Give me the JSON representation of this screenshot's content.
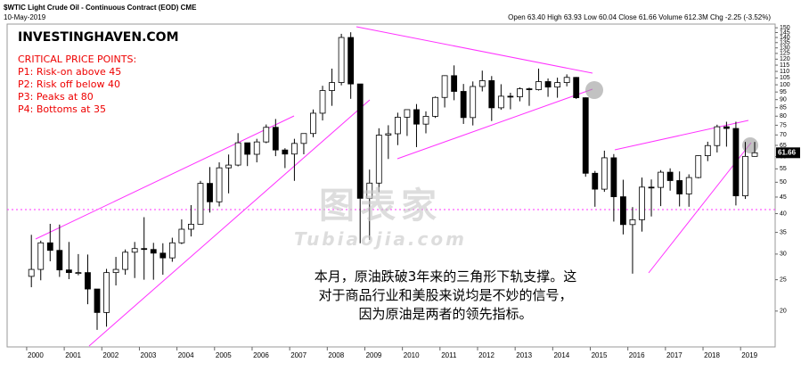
{
  "chart_data": {
    "type": "candlestick",
    "title": "$WTIC Light Crude Oil - Continuous Contract (EOD) CME",
    "subtitle": "10-May-2019",
    "stats": "Open 63.40 High 63.93 Low 60.04 Close 61.66 Volume 612.3M Chg -2.25 (-3.52%)",
    "last_price": 61.66,
    "last_price_label": "61.66",
    "brand": "INVESTINGHAVEN.COM",
    "notes_title": "CRITICAL PRICE POINTS:",
    "notes": [
      "P1: Risk-on above 45",
      "P2: Risk off below 40",
      "P3: Peaks at 80",
      "P4: Bottoms at 35"
    ],
    "caption": [
      "本月，原油跌破3年来的三角形下轨支撑。这",
      "对于商品行业和美股来说均是不妙的信号，",
      "因为原油是两者的领先指标。"
    ],
    "watermark": [
      "图表家",
      "Tubiaojia.com"
    ],
    "log_scale": true,
    "up_color": "#ffffff",
    "down_color": "#000000",
    "line_color": "#ff33ff",
    "xlim": [
      1999.48,
      2019.92
    ],
    "xticks": [
      2000,
      2001,
      2002,
      2003,
      2004,
      2005,
      2006,
      2007,
      2008,
      2009,
      2010,
      2011,
      2012,
      2013,
      2014,
      2015,
      2016,
      2017,
      2018,
      2019
    ],
    "ylim": [
      15.5,
      154
    ],
    "yticks": [
      20,
      25,
      30,
      35,
      40,
      45,
      50,
      55,
      60,
      65,
      70,
      75,
      80,
      85,
      90,
      95,
      100,
      105,
      110,
      115,
      120,
      125,
      130,
      135,
      140,
      145,
      150
    ],
    "x": [
      2000.125,
      2000.375,
      2000.625,
      2000.875,
      2001.125,
      2001.375,
      2001.625,
      2001.875,
      2002.125,
      2002.375,
      2002.625,
      2002.875,
      2003.125,
      2003.375,
      2003.625,
      2003.875,
      2004.125,
      2004.375,
      2004.625,
      2004.875,
      2005.125,
      2005.375,
      2005.625,
      2005.875,
      2006.125,
      2006.375,
      2006.625,
      2006.875,
      2007.125,
      2007.375,
      2007.625,
      2007.875,
      2008.125,
      2008.375,
      2008.625,
      2008.875,
      2009.125,
      2009.375,
      2009.625,
      2009.875,
      2010.125,
      2010.375,
      2010.625,
      2010.875,
      2011.125,
      2011.375,
      2011.625,
      2011.875,
      2012.125,
      2012.375,
      2012.625,
      2012.875,
      2013.125,
      2013.375,
      2013.625,
      2013.875,
      2014.125,
      2014.375,
      2014.625,
      2014.875,
      2015.125,
      2015.375,
      2015.625,
      2015.875,
      2016.125,
      2016.375,
      2016.625,
      2016.875,
      2017.125,
      2017.375,
      2017.625,
      2017.875,
      2018.125,
      2018.375,
      2018.625,
      2018.875,
      2019.125,
      2019.375
    ],
    "open": [
      25.6,
      26.9,
      32.5,
      30.8,
      26.8,
      26.3,
      26.3,
      23.4,
      19.8,
      26.3,
      26.9,
      30.4,
      31.2,
      31.0,
      30.2,
      29.2,
      32.5,
      35.8,
      37.1,
      49.6,
      43.5,
      55.4,
      56.5,
      66.2,
      61.0,
      66.6,
      73.9,
      62.9,
      61.1,
      65.9,
      70.7,
      81.7,
      96.0,
      101.6,
      140.0,
      100.6,
      44.6,
      49.7,
      69.9,
      70.6,
      79.4,
      83.8,
      75.6,
      79.9,
      91.4,
      106.7,
      95.4,
      79.2,
      98.8,
      103.0,
      84.9,
      92.2,
      91.8,
      97.2,
      96.6,
      102.3,
      98.4,
      101.6,
      105.4,
      91.2,
      53.3,
      47.6,
      59.5,
      45.1,
      37.0,
      38.3,
      48.3,
      48.2,
      53.7,
      50.6,
      46.0,
      51.7,
      60.4,
      64.9,
      74.2,
      73.3,
      45.4,
      60.1
    ],
    "high": [
      34.4,
      33.0,
      37.2,
      37.0,
      32.7,
      30.0,
      29.9,
      23.4,
      27.0,
      29.4,
      31.0,
      32.7,
      39.0,
      32.5,
      32.4,
      33.7,
      38.4,
      42.5,
      50.5,
      55.7,
      57.6,
      60.9,
      70.9,
      66.0,
      68.1,
      75.4,
      78.4,
      63.7,
      68.1,
      70.8,
      83.9,
      99.3,
      112.2,
      143.7,
      145.3,
      100.1,
      54.7,
      73.4,
      75.0,
      82.0,
      83.9,
      87.2,
      82.8,
      92.0,
      107.0,
      114.8,
      100.6,
      102.4,
      110.6,
      106.4,
      100.4,
      94.5,
      98.2,
      98.0,
      112.2,
      104.6,
      105.2,
      107.7,
      105.7,
      91.4,
      54.2,
      62.6,
      61.1,
      50.9,
      41.9,
      51.7,
      51.0,
      54.5,
      55.2,
      54.0,
      52.9,
      60.5,
      66.7,
      75.3,
      76.9,
      76.9,
      66.6,
      66.6
    ],
    "low": [
      23.7,
      24.9,
      28.5,
      25.5,
      25.1,
      25.8,
      21.0,
      17.5,
      17.9,
      24.0,
      25.9,
      25.3,
      25.0,
      25.0,
      25.9,
      28.4,
      32.2,
      34.0,
      38.1,
      40.3,
      42.1,
      46.2,
      56.0,
      56.1,
      57.6,
      66.0,
      60.2,
      55.3,
      50.5,
      61.0,
      68.9,
      77.6,
      86.1,
      99.6,
      90.5,
      32.4,
      33.2,
      46.6,
      59.0,
      65.1,
      69.5,
      64.2,
      70.8,
      79.0,
      85.1,
      89.6,
      75.7,
      74.9,
      95.4,
      77.3,
      83.7,
      84.0,
      88.9,
      86.1,
      96.0,
      91.8,
      91.2,
      98.9,
      90.4,
      52.0,
      42.0,
      46.7,
      37.8,
      34.5,
      26.1,
      35.2,
      39.2,
      42.2,
      47.1,
      42.1,
      42.0,
      51.4,
      58.1,
      61.8,
      64.4,
      42.4,
      44.4,
      60.0
    ],
    "close": [
      26.9,
      32.5,
      30.8,
      26.8,
      26.3,
      26.3,
      23.4,
      19.8,
      26.3,
      26.9,
      30.4,
      31.2,
      31.0,
      30.2,
      29.2,
      32.5,
      35.8,
      37.1,
      49.6,
      43.5,
      55.4,
      56.5,
      66.2,
      61.0,
      66.6,
      73.9,
      62.9,
      61.1,
      65.9,
      70.7,
      81.7,
      96.0,
      101.6,
      140.0,
      100.6,
      44.6,
      49.7,
      69.9,
      70.6,
      79.4,
      83.8,
      75.6,
      79.9,
      91.4,
      106.7,
      95.4,
      79.2,
      98.8,
      103.0,
      84.9,
      92.2,
      91.8,
      97.2,
      96.6,
      102.3,
      98.4,
      101.6,
      105.4,
      91.2,
      53.3,
      47.6,
      59.5,
      45.1,
      37.0,
      38.3,
      48.3,
      48.2,
      53.7,
      50.6,
      46.0,
      51.7,
      60.4,
      64.9,
      74.2,
      73.3,
      45.4,
      60.1,
      61.66
    ]
  }
}
